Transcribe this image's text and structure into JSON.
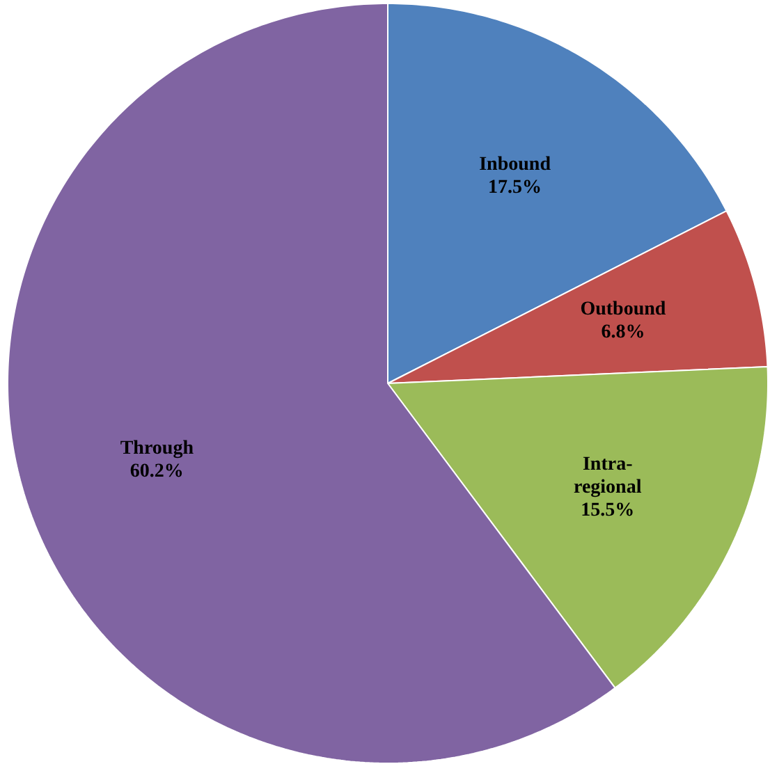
{
  "chart_data": {
    "type": "pie",
    "categories": [
      "Inbound",
      "Outbound",
      "Intra-regional",
      "Through"
    ],
    "values": [
      17.5,
      6.8,
      15.5,
      60.2
    ],
    "value_labels": [
      "17.5%",
      "6.8%",
      "15.5%",
      "60.2%"
    ],
    "colors": [
      "#4f81bd",
      "#c0504d",
      "#9bbb59",
      "#8064a2"
    ]
  }
}
